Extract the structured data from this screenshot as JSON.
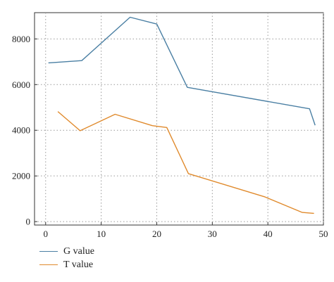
{
  "chart_data": {
    "type": "line",
    "title": "",
    "xlabel": "",
    "ylabel": "",
    "xlim": [
      -2,
      50
    ],
    "ylim": [
      -150,
      9150
    ],
    "x_ticks": [
      0,
      10,
      20,
      30,
      40,
      50
    ],
    "y_ticks": [
      0,
      2000,
      4000,
      6000,
      8000
    ],
    "grid": true,
    "legend_position": "bottom-left",
    "series": [
      {
        "name": "G value",
        "color": "#4a7fa3",
        "x": [
          0.5,
          6.5,
          15.2,
          20.0,
          25.5,
          47.5,
          48.5
        ],
        "y": [
          6950,
          7050,
          8950,
          8650,
          5880,
          4940,
          4220
        ]
      },
      {
        "name": "T value",
        "color": "#e08a2c",
        "x": [
          2.2,
          6.2,
          12.5,
          19.2,
          21.8,
          25.7,
          39.5,
          46.2,
          48.3
        ],
        "y": [
          4820,
          3980,
          4700,
          4200,
          4120,
          2100,
          1080,
          400,
          360
        ]
      }
    ]
  }
}
